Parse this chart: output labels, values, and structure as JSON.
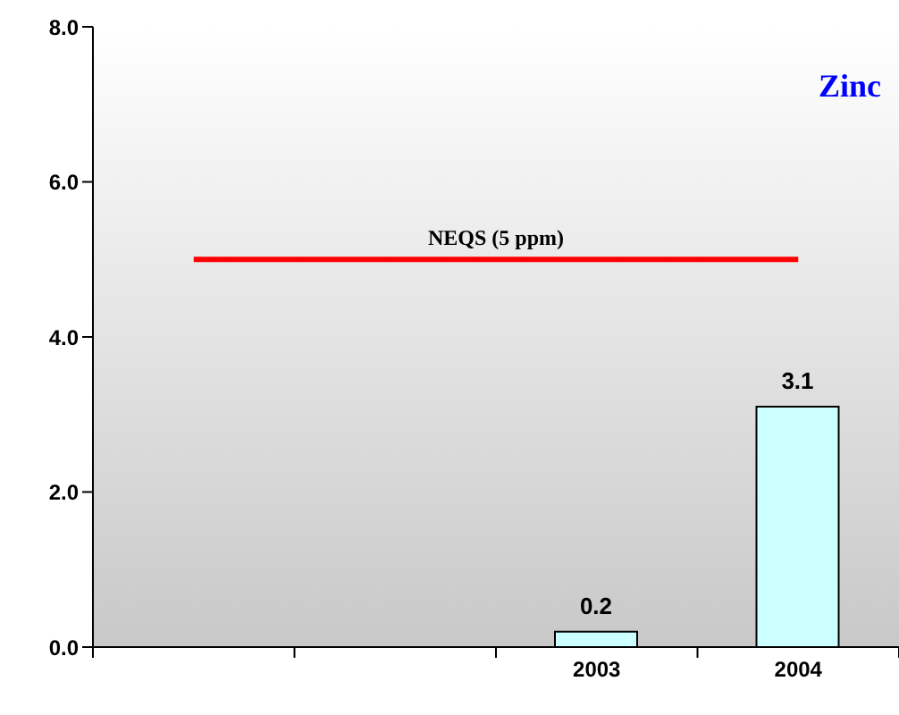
{
  "chart_data": {
    "type": "bar",
    "title": "Zinc",
    "categories": [
      null,
      null,
      "2003",
      "2004"
    ],
    "values": [
      null,
      null,
      0.2,
      3.1
    ],
    "color": "#ccffff",
    "ylim": [
      0,
      8
    ],
    "yticks": [
      {
        "value": 0,
        "label": "0.0"
      },
      {
        "value": 2,
        "label": "2.0"
      },
      {
        "value": 4,
        "label": "4.0"
      },
      {
        "value": 6,
        "label": "6.0"
      },
      {
        "value": 8,
        "label": "8.0"
      }
    ],
    "data_labels": true,
    "grid": false,
    "ref_lines": [
      {
        "axis": "y",
        "value": 5,
        "label": "NEQS (5 ppm)",
        "color": "#ff0000"
      }
    ]
  }
}
